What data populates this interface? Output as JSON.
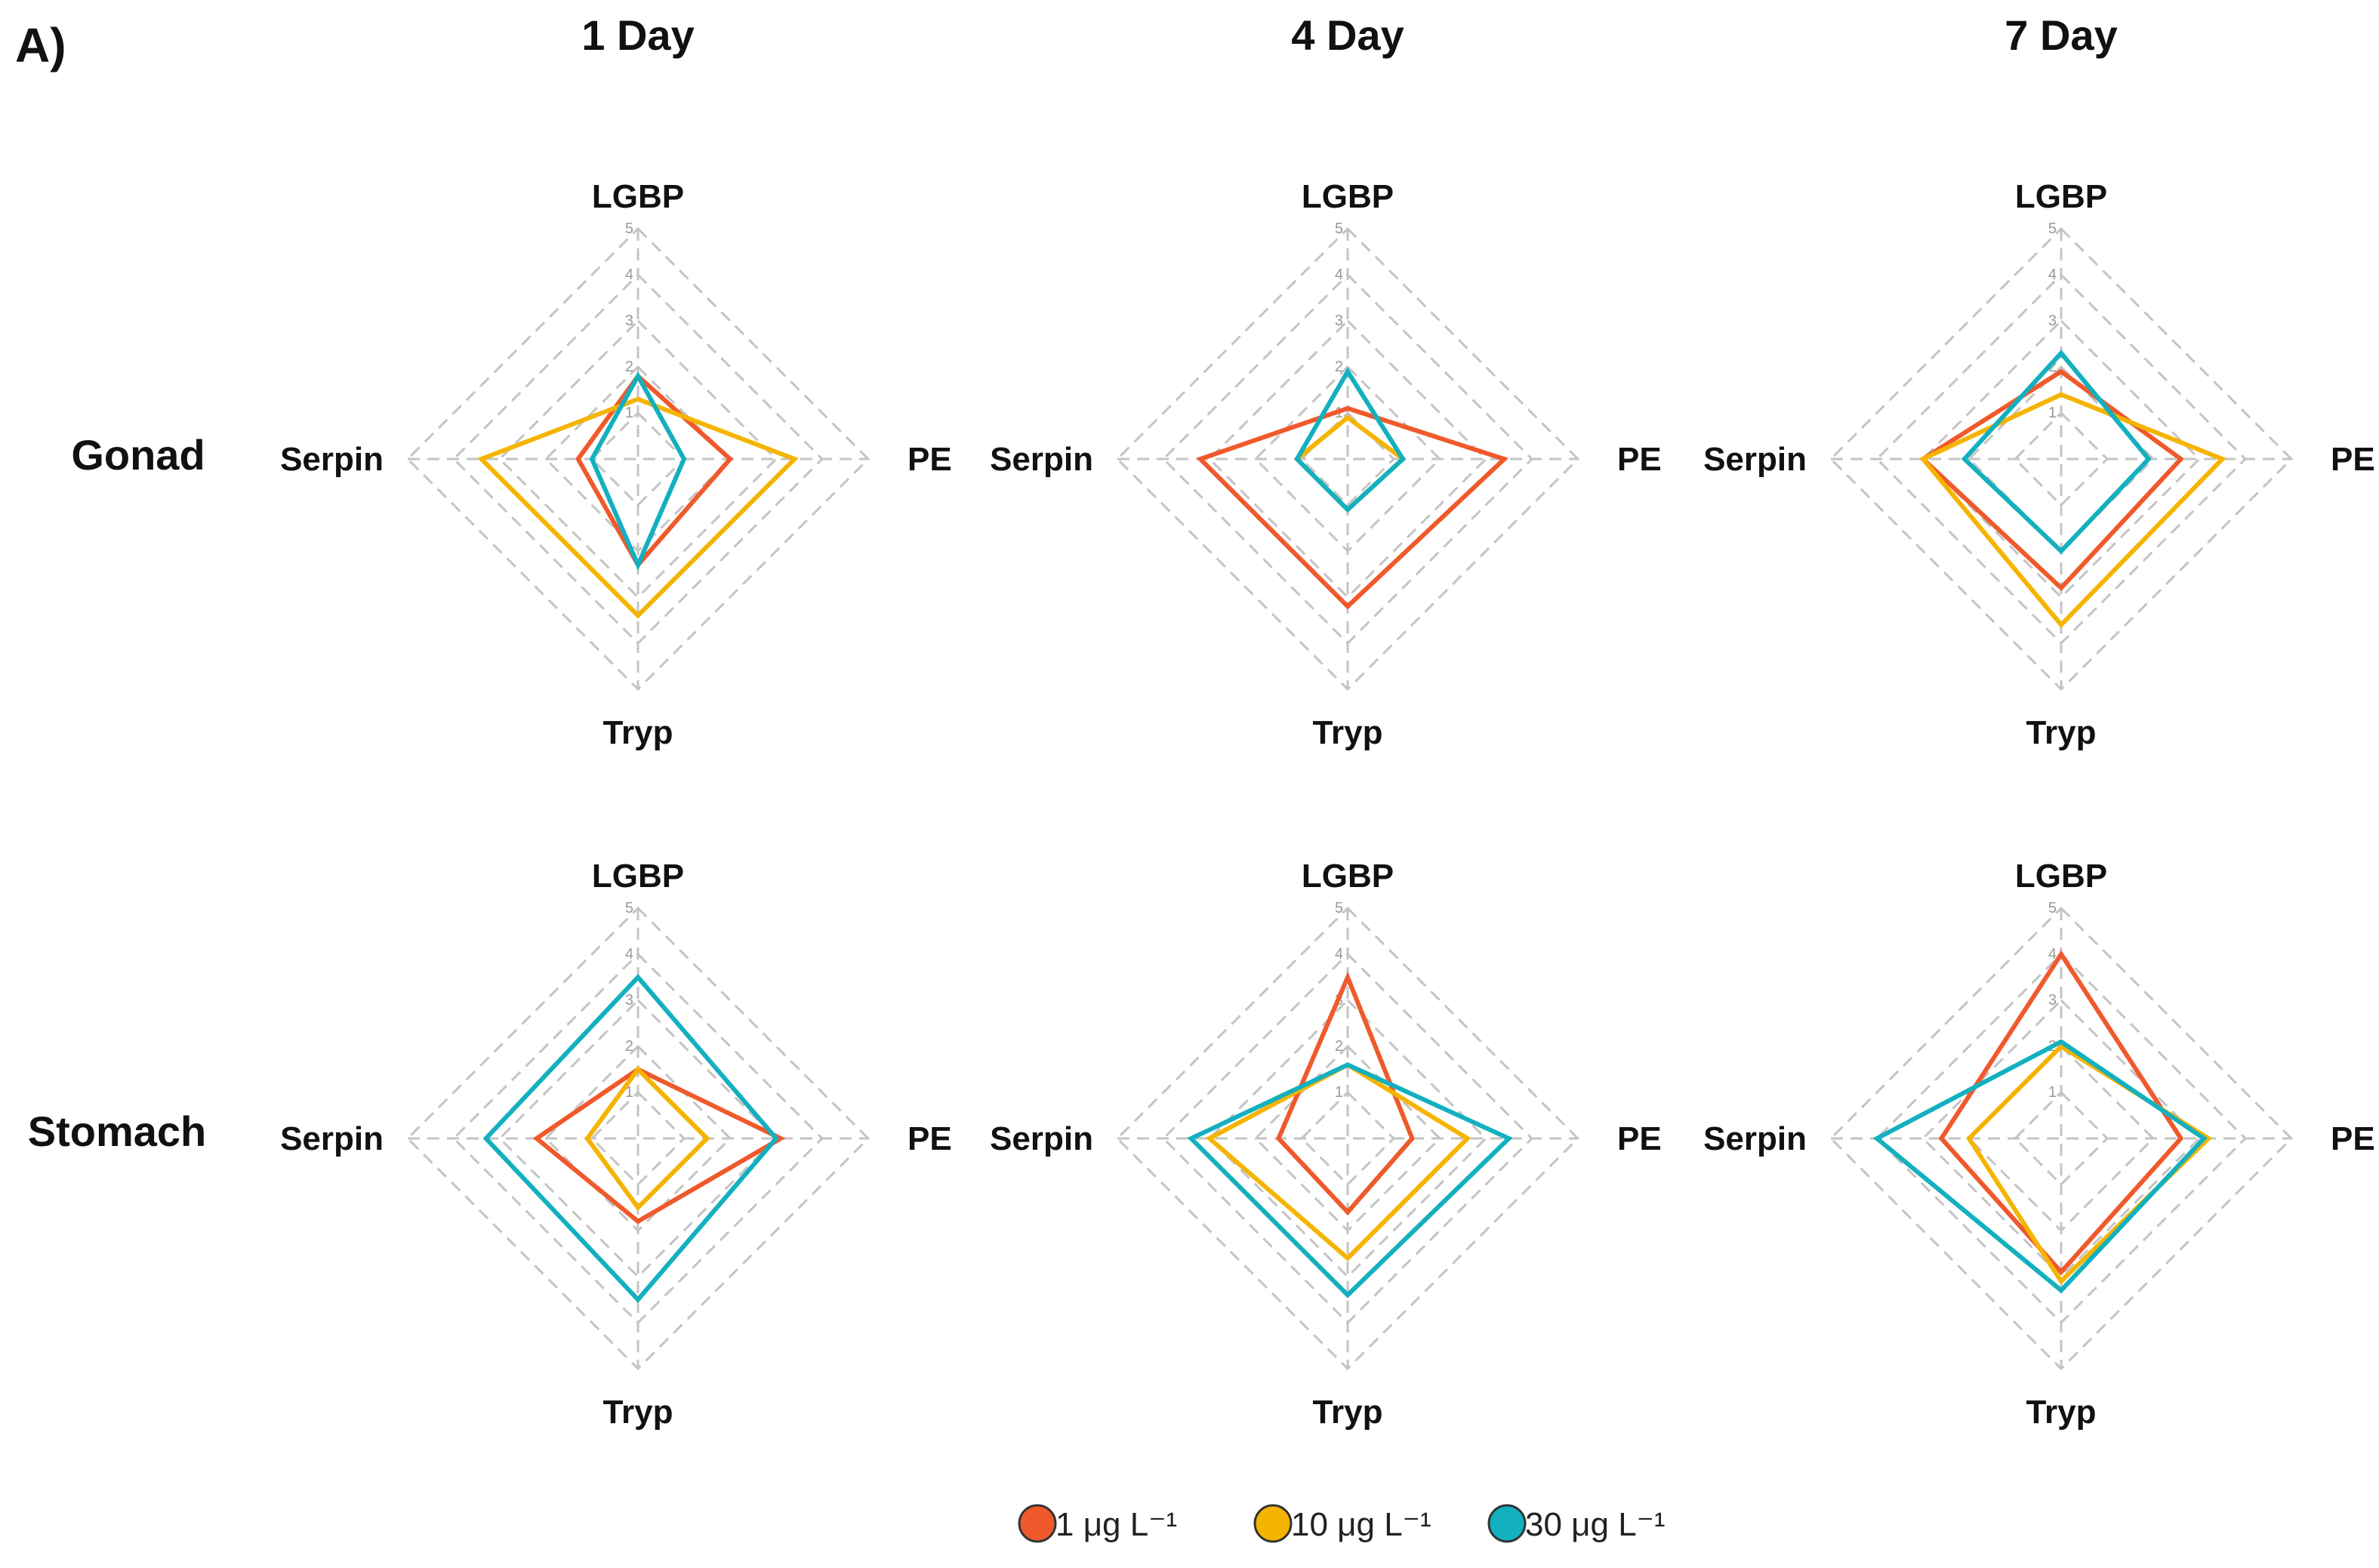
{
  "panel_label": "A)",
  "columns": [
    "1 Day",
    "4 Day",
    "7 Day"
  ],
  "rows": [
    "Gonad",
    "Stomach"
  ],
  "legend": {
    "items": [
      {
        "label": "1 μg L⁻¹",
        "color": "#f0592b"
      },
      {
        "label": "10 μg L⁻¹",
        "color": "#f5b400"
      },
      {
        "label": "30 μg L⁻¹",
        "color": "#13b0bf"
      }
    ]
  },
  "chart_data": {
    "type": "radar",
    "axes": [
      "LGBP",
      "PE",
      "Tryp",
      "Serpin"
    ],
    "rmax": 5,
    "ticks": [
      "1",
      "2",
      "3",
      "4",
      "5"
    ],
    "grid": "dashed",
    "legend_position": "bottom",
    "panels": [
      {
        "row": "Gonad",
        "column": "1 Day",
        "series": [
          {
            "name": "1 μg L⁻¹",
            "values": [
              1.8,
              2.0,
              2.3,
              1.3
            ]
          },
          {
            "name": "10 μg L⁻¹",
            "values": [
              1.3,
              3.4,
              3.4,
              3.4
            ]
          },
          {
            "name": "30 μg L⁻¹",
            "values": [
              1.8,
              1.0,
              2.3,
              1.0
            ]
          }
        ]
      },
      {
        "row": "Gonad",
        "column": "4 Day",
        "series": [
          {
            "name": "1 μg L⁻¹",
            "values": [
              1.1,
              3.4,
              3.2,
              3.2
            ]
          },
          {
            "name": "10 μg L⁻¹",
            "values": [
              0.9,
              1.2,
              1.1,
              1.1
            ]
          },
          {
            "name": "30 μg L⁻¹",
            "values": [
              1.9,
              1.2,
              1.1,
              1.1
            ]
          }
        ]
      },
      {
        "row": "Gonad",
        "column": "7 Day",
        "series": [
          {
            "name": "1 μg L⁻¹",
            "values": [
              1.9,
              2.6,
              2.8,
              3.0
            ]
          },
          {
            "name": "10 μg L⁻¹",
            "values": [
              1.4,
              3.5,
              3.6,
              3.0
            ]
          },
          {
            "name": "30 μg L⁻¹",
            "values": [
              2.3,
              1.9,
              2.0,
              2.1
            ]
          }
        ]
      },
      {
        "row": "Stomach",
        "column": "1 Day",
        "series": [
          {
            "name": "1 μg L⁻¹",
            "values": [
              1.5,
              3.1,
              1.8,
              2.2
            ]
          },
          {
            "name": "10 μg L⁻¹",
            "values": [
              1.5,
              1.5,
              1.5,
              1.1
            ]
          },
          {
            "name": "30 μg L⁻¹",
            "values": [
              3.5,
              3.0,
              3.5,
              3.3
            ]
          }
        ]
      },
      {
        "row": "Stomach",
        "column": "4 Day",
        "series": [
          {
            "name": "1 μg L⁻¹",
            "values": [
              3.5,
              1.4,
              1.6,
              1.5
            ]
          },
          {
            "name": "10 μg L⁻¹",
            "values": [
              1.6,
              2.6,
              2.6,
              3.0
            ]
          },
          {
            "name": "30 μg L⁻¹",
            "values": [
              1.6,
              3.5,
              3.4,
              3.4
            ]
          }
        ]
      },
      {
        "row": "Stomach",
        "column": "7 Day",
        "series": [
          {
            "name": "1 μg L⁻¹",
            "values": [
              4.0,
              2.6,
              2.9,
              2.6
            ]
          },
          {
            "name": "10 μg L⁻¹",
            "values": [
              2.0,
              3.2,
              3.1,
              2.0
            ]
          },
          {
            "name": "30 μg L⁻¹",
            "values": [
              2.1,
              3.1,
              3.3,
              4.0
            ]
          }
        ]
      }
    ]
  }
}
